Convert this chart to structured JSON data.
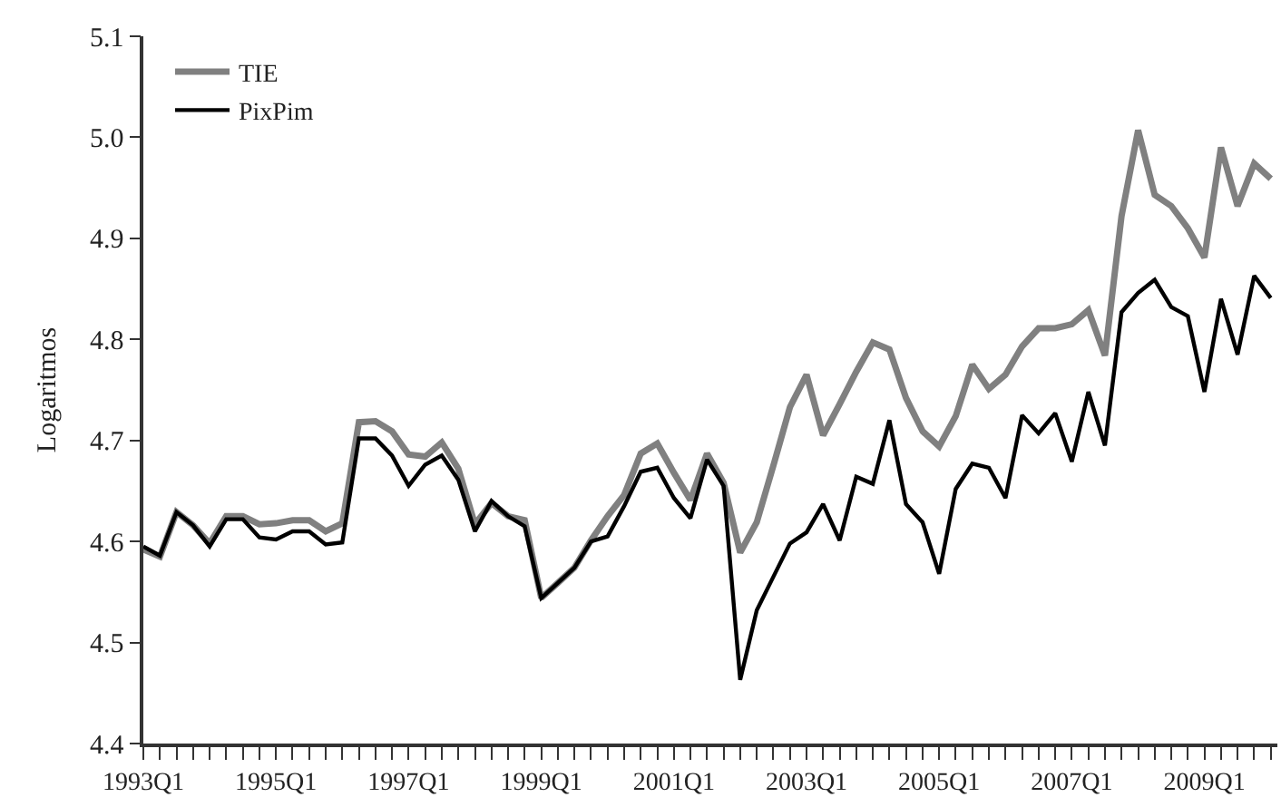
{
  "chart_data": {
    "type": "line",
    "ylabel": "Logaritmos",
    "categories": [
      "1993Q1",
      null,
      null,
      null,
      null,
      null,
      null,
      null,
      "1995Q1",
      null,
      null,
      null,
      null,
      null,
      null,
      null,
      "1997Q1",
      null,
      null,
      null,
      null,
      null,
      null,
      null,
      "1999Q1",
      null,
      null,
      null,
      null,
      null,
      null,
      null,
      "2001Q1",
      null,
      null,
      null,
      null,
      null,
      null,
      null,
      "2003Q1",
      null,
      null,
      null,
      null,
      null,
      null,
      null,
      "2005Q1",
      null,
      null,
      null,
      null,
      null,
      null,
      null,
      "2007Q1",
      null,
      null,
      null,
      null,
      null,
      null,
      null,
      "2009Q1",
      null,
      null,
      null,
      null
    ],
    "series": [
      {
        "name": "TIE",
        "color": "#808080",
        "values": [
          4.592,
          4.585,
          4.629,
          4.616,
          4.598,
          4.625,
          4.625,
          4.617,
          4.618,
          4.621,
          4.621,
          4.61,
          4.618,
          4.718,
          4.719,
          4.709,
          4.686,
          4.684,
          4.698,
          4.672,
          4.617,
          4.638,
          4.625,
          4.621,
          4.544,
          4.559,
          4.574,
          4.601,
          4.625,
          4.646,
          4.687,
          4.697,
          4.668,
          4.641,
          4.687,
          4.658,
          4.589,
          4.619,
          4.675,
          4.733,
          4.765,
          4.705,
          4.736,
          4.768,
          4.797,
          4.79,
          4.742,
          4.709,
          4.694,
          4.724,
          4.775,
          4.751,
          4.765,
          4.793,
          4.811,
          4.811,
          4.815,
          4.829,
          4.784,
          4.922,
          5.007,
          4.943,
          4.932,
          4.91,
          4.881,
          4.99,
          4.932,
          4.974,
          4.959
        ]
      },
      {
        "name": "PixPim",
        "color": "#000000",
        "values": [
          4.595,
          4.586,
          4.629,
          4.616,
          4.595,
          4.622,
          4.622,
          4.604,
          4.602,
          4.61,
          4.61,
          4.597,
          4.599,
          4.702,
          4.702,
          4.685,
          4.655,
          4.676,
          4.685,
          4.661,
          4.61,
          4.64,
          4.625,
          4.615,
          4.544,
          4.559,
          4.574,
          4.6,
          4.605,
          4.635,
          4.669,
          4.673,
          4.643,
          4.623,
          4.681,
          4.655,
          4.463,
          4.532,
          4.565,
          4.598,
          4.609,
          4.637,
          4.601,
          4.664,
          4.657,
          4.72,
          4.637,
          4.619,
          4.568,
          4.652,
          4.677,
          4.673,
          4.643,
          4.725,
          4.707,
          4.727,
          4.679,
          4.748,
          4.695,
          4.827,
          4.846,
          4.859,
          4.832,
          4.823,
          4.748,
          4.84,
          4.785,
          4.863,
          4.841
        ]
      }
    ],
    "ylim": [
      4.4,
      5.1
    ],
    "yticks": [
      4.4,
      4.5,
      4.6,
      4.7,
      4.8,
      4.9,
      {
        "value": 5.0,
        "label": "5.0"
      },
      5.1
    ],
    "legend": "top left",
    "marker": "none",
    "line_style": "solid"
  }
}
